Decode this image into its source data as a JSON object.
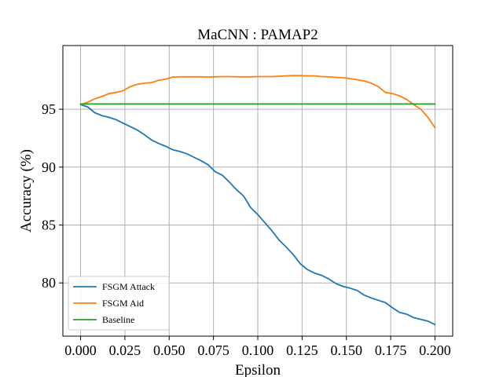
{
  "chart_data": {
    "type": "line",
    "title": "MaCNN : PAMAP2",
    "xlabel": "Epsilon",
    "ylabel": "Accuracy (%)",
    "xlim": [
      -0.01,
      0.21
    ],
    "ylim": [
      75.4,
      100.5
    ],
    "grid": true,
    "legend_position": "lower-left",
    "xticks": [
      0.0,
      0.025,
      0.05,
      0.075,
      0.1,
      0.125,
      0.15,
      0.175,
      0.2
    ],
    "xtick_labels": [
      "0.000",
      "0.025",
      "0.050",
      "0.075",
      "0.100",
      "0.125",
      "0.150",
      "0.175",
      "0.200"
    ],
    "yticks": [
      80,
      85,
      90,
      95
    ],
    "ytick_labels": [
      "80",
      "85",
      "90",
      "95"
    ],
    "x": [
      0.0,
      0.004,
      0.008,
      0.012,
      0.016,
      0.02,
      0.024,
      0.028,
      0.032,
      0.036,
      0.04,
      0.044,
      0.048,
      0.052,
      0.056,
      0.06,
      0.064,
      0.068,
      0.072,
      0.076,
      0.08,
      0.084,
      0.088,
      0.092,
      0.096,
      0.1,
      0.104,
      0.108,
      0.112,
      0.116,
      0.12,
      0.124,
      0.128,
      0.132,
      0.136,
      0.14,
      0.144,
      0.148,
      0.152,
      0.156,
      0.16,
      0.164,
      0.168,
      0.172,
      0.176,
      0.18,
      0.184,
      0.188,
      0.192,
      0.196,
      0.2
    ],
    "series": [
      {
        "name": "FSGM Attack",
        "color": "#1f77b4",
        "values": [
          95.4,
          95.2,
          94.7,
          94.45,
          94.3,
          94.1,
          93.8,
          93.5,
          93.2,
          92.8,
          92.35,
          92.05,
          91.8,
          91.5,
          91.35,
          91.15,
          90.85,
          90.55,
          90.2,
          89.6,
          89.3,
          88.7,
          88.05,
          87.5,
          86.5,
          85.9,
          85.2,
          84.5,
          83.7,
          83.1,
          82.45,
          81.65,
          81.15,
          80.85,
          80.65,
          80.35,
          79.95,
          79.7,
          79.55,
          79.35,
          78.95,
          78.7,
          78.5,
          78.3,
          77.85,
          77.45,
          77.3,
          77.0,
          76.85,
          76.7,
          76.4
        ]
      },
      {
        "name": "FSGM Aid",
        "color": "#ff7f0e",
        "values": [
          95.4,
          95.6,
          95.9,
          96.1,
          96.35,
          96.45,
          96.6,
          96.95,
          97.15,
          97.25,
          97.3,
          97.5,
          97.6,
          97.78,
          97.8,
          97.8,
          97.8,
          97.8,
          97.78,
          97.8,
          97.82,
          97.82,
          97.8,
          97.8,
          97.8,
          97.82,
          97.82,
          97.82,
          97.85,
          97.88,
          97.9,
          97.9,
          97.88,
          97.88,
          97.82,
          97.8,
          97.75,
          97.72,
          97.65,
          97.55,
          97.45,
          97.25,
          96.95,
          96.45,
          96.35,
          96.15,
          95.85,
          95.4,
          95.0,
          94.3,
          93.4
        ]
      },
      {
        "name": "Baseline",
        "color": "#2ca02c",
        "values": [
          95.45,
          95.45,
          95.45,
          95.45,
          95.45,
          95.45,
          95.45,
          95.45,
          95.45,
          95.45,
          95.45,
          95.45,
          95.45,
          95.45,
          95.45,
          95.45,
          95.45,
          95.45,
          95.45,
          95.45,
          95.45,
          95.45,
          95.45,
          95.45,
          95.45,
          95.45,
          95.45,
          95.45,
          95.45,
          95.45,
          95.45,
          95.45,
          95.45,
          95.45,
          95.45,
          95.45,
          95.45,
          95.45,
          95.45,
          95.45,
          95.45,
          95.45,
          95.45,
          95.45,
          95.45,
          95.45,
          95.45,
          95.45,
          95.45,
          95.45,
          95.45
        ]
      }
    ]
  }
}
